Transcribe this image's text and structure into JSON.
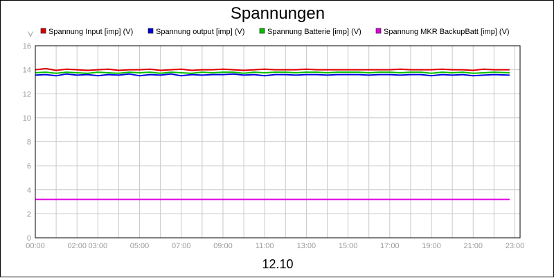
{
  "chart_data": {
    "type": "line",
    "title": "Spannungen",
    "ylabel": "V",
    "xlabel": "12.10",
    "ylim": [
      0,
      16
    ],
    "yticks": [
      0,
      2,
      4,
      6,
      8,
      10,
      12,
      14,
      16
    ],
    "xlim": [
      "00:00",
      "23:15"
    ],
    "xticks": [
      "00:00",
      "02:00",
      "03:00",
      "05:00",
      "07:00",
      "09:00",
      "11:00",
      "13:00",
      "15:00",
      "17:00",
      "19:00",
      "21:00",
      "23:00"
    ],
    "grid": true,
    "legend_position": "top",
    "series": [
      {
        "name": "Spannung Input [imp] (V)",
        "color": "#e00000",
        "x": [
          "00:00",
          "00:30",
          "01:00",
          "01:30",
          "02:00",
          "02:30",
          "03:00",
          "03:30",
          "04:00",
          "04:30",
          "05:00",
          "05:30",
          "06:00",
          "06:30",
          "07:00",
          "07:30",
          "08:00",
          "08:30",
          "09:00",
          "09:30",
          "10:00",
          "10:30",
          "11:00",
          "11:30",
          "12:00",
          "12:30",
          "13:00",
          "13:30",
          "14:00",
          "14:30",
          "15:00",
          "15:30",
          "16:00",
          "16:30",
          "17:00",
          "17:30",
          "18:00",
          "18:30",
          "19:00",
          "19:30",
          "20:00",
          "20:30",
          "21:00",
          "21:30",
          "22:00",
          "22:45"
        ],
        "values": [
          14.0,
          14.1,
          13.95,
          14.05,
          14.0,
          13.95,
          14.0,
          14.05,
          13.95,
          14.0,
          14.0,
          14.05,
          13.95,
          14.0,
          14.05,
          13.95,
          14.0,
          14.0,
          14.05,
          14.0,
          13.95,
          14.0,
          14.05,
          14.0,
          14.0,
          14.0,
          14.05,
          14.0,
          14.0,
          14.0,
          14.0,
          14.0,
          14.0,
          14.0,
          14.0,
          14.05,
          14.0,
          14.0,
          14.0,
          14.05,
          14.0,
          14.0,
          13.95,
          14.05,
          14.0,
          14.0
        ]
      },
      {
        "name": "Spannung output [imp] (V)",
        "color": "#0000e0",
        "x": [
          "00:00",
          "00:30",
          "01:00",
          "01:30",
          "02:00",
          "02:30",
          "03:00",
          "03:30",
          "04:00",
          "04:30",
          "05:00",
          "05:30",
          "06:00",
          "06:30",
          "07:00",
          "07:30",
          "08:00",
          "08:30",
          "09:00",
          "09:30",
          "10:00",
          "10:30",
          "11:00",
          "11:30",
          "12:00",
          "12:30",
          "13:00",
          "13:30",
          "14:00",
          "14:30",
          "15:00",
          "15:30",
          "16:00",
          "16:30",
          "17:00",
          "17:30",
          "18:00",
          "18:30",
          "19:00",
          "19:30",
          "20:00",
          "20:30",
          "21:00",
          "21:30",
          "22:00",
          "22:45"
        ],
        "values": [
          13.55,
          13.6,
          13.5,
          13.65,
          13.55,
          13.6,
          13.5,
          13.6,
          13.55,
          13.65,
          13.5,
          13.6,
          13.55,
          13.65,
          13.5,
          13.6,
          13.55,
          13.6,
          13.6,
          13.65,
          13.55,
          13.6,
          13.5,
          13.6,
          13.6,
          13.55,
          13.6,
          13.6,
          13.55,
          13.6,
          13.6,
          13.6,
          13.55,
          13.6,
          13.6,
          13.55,
          13.6,
          13.6,
          13.5,
          13.6,
          13.55,
          13.6,
          13.5,
          13.55,
          13.6,
          13.55
        ]
      },
      {
        "name": "Spannung Batterie [imp] (V)",
        "color": "#00c000",
        "x": [
          "00:00",
          "00:30",
          "01:00",
          "01:30",
          "02:00",
          "02:30",
          "03:00",
          "03:30",
          "04:00",
          "04:30",
          "05:00",
          "05:30",
          "06:00",
          "06:30",
          "07:00",
          "07:30",
          "08:00",
          "08:30",
          "09:00",
          "09:30",
          "10:00",
          "10:30",
          "11:00",
          "11:30",
          "12:00",
          "12:30",
          "13:00",
          "13:30",
          "14:00",
          "14:30",
          "15:00",
          "15:30",
          "16:00",
          "16:30",
          "17:00",
          "17:30",
          "18:00",
          "18:30",
          "19:00",
          "19:30",
          "20:00",
          "20:30",
          "21:00",
          "21:30",
          "22:00",
          "22:45"
        ],
        "values": [
          13.75,
          13.8,
          13.7,
          13.8,
          13.75,
          13.7,
          13.8,
          13.75,
          13.7,
          13.8,
          13.75,
          13.8,
          13.7,
          13.8,
          13.75,
          13.7,
          13.8,
          13.75,
          13.8,
          13.8,
          13.7,
          13.8,
          13.75,
          13.8,
          13.8,
          13.75,
          13.8,
          13.8,
          13.75,
          13.8,
          13.8,
          13.8,
          13.75,
          13.8,
          13.8,
          13.75,
          13.8,
          13.8,
          13.7,
          13.8,
          13.75,
          13.8,
          13.7,
          13.75,
          13.8,
          13.75
        ]
      },
      {
        "name": "Spannung MKR BackupBatt [imp] (V)",
        "color": "#e000e0",
        "x": [
          "00:00",
          "22:45"
        ],
        "values": [
          3.2,
          3.2
        ]
      }
    ]
  }
}
